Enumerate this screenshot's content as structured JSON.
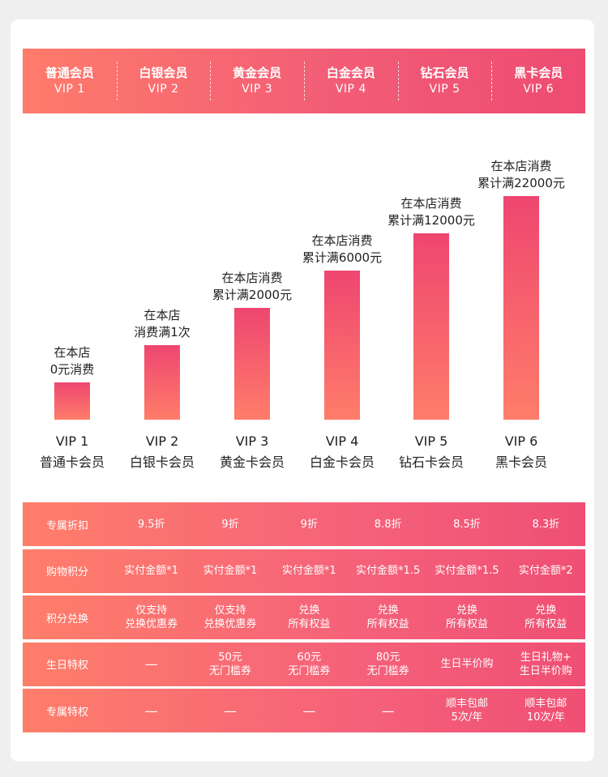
{
  "tiers": [
    {
      "name": "普通会员",
      "vip": "VIP 1"
    },
    {
      "name": "白银会员",
      "vip": "VIP 2"
    },
    {
      "name": "黄金会员",
      "vip": "VIP 3"
    },
    {
      "name": "白金会员",
      "vip": "VIP 4"
    },
    {
      "name": "钻石会员",
      "vip": "VIP 5"
    },
    {
      "name": "黑卡会员",
      "vip": "VIP 6"
    }
  ],
  "chart_data": {
    "type": "bar",
    "categories": [
      "VIP 1",
      "VIP 2",
      "VIP 3",
      "VIP 4",
      "VIP 5",
      "VIP 6"
    ],
    "category_sublabels": [
      "普通卡会员",
      "白银卡会员",
      "黄金卡会员",
      "白金卡会员",
      "钻石卡会员",
      "黑卡会员"
    ],
    "values": [
      1,
      2,
      3,
      4,
      5,
      6
    ],
    "data_labels": [
      [
        "在本店",
        "0元消费"
      ],
      [
        "在本店",
        "消费满1次"
      ],
      [
        "在本店消费",
        "累计满2000元"
      ],
      [
        "在本店消费",
        "累计满6000元"
      ],
      [
        "在本店消费",
        "累计满12000元"
      ],
      [
        "在本店消费",
        "累计满22000元"
      ]
    ],
    "title": "",
    "xlabel": "",
    "ylabel": "",
    "ylim": [
      0,
      6
    ],
    "grid": false,
    "bar_gradient": {
      "top": "#ee4670",
      "bottom": "#ff7d6a"
    }
  },
  "benefits": {
    "rows": [
      {
        "label": "专属折扣",
        "cells": [
          "9.5折",
          "9折",
          "9折",
          "8.8折",
          "8.5折",
          "8.3折"
        ]
      },
      {
        "label": "购物积分",
        "cells": [
          "实付金额*1",
          "实付金额*1",
          "实付金额*1",
          "实付金额*1.5",
          "实付金额*1.5",
          "实付金额*2"
        ]
      },
      {
        "label": "积分兑换",
        "cells": [
          "仅支持\n兑换优惠券",
          "仅支持\n兑换优惠券",
          "兑换\n所有权益",
          "兑换\n所有权益",
          "兑换\n所有权益",
          "兑换\n所有权益"
        ]
      },
      {
        "label": "生日特权",
        "cells": [
          "—",
          "50元\n无门槛券",
          "60元\n无门槛券",
          "80元\n无门槛券",
          "生日半价购",
          "生日礼物+\n生日半价购"
        ]
      },
      {
        "label": "专属特权",
        "cells": [
          "—",
          "—",
          "—",
          "—",
          "顺丰包邮\n5次/年",
          "顺丰包邮\n10次/年"
        ]
      }
    ]
  },
  "colors": {
    "accent_light": "#ff7b6b",
    "accent_dark": "#ee4b72",
    "background": "#efefef",
    "card": "#ffffff"
  }
}
